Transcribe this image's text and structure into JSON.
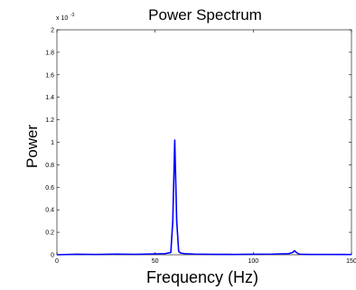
{
  "chart_data": {
    "type": "line",
    "title": "Power Spectrum",
    "xlabel": "Frequency (Hz)",
    "ylabel": "Power",
    "y_multiplier_label": "x 10",
    "y_multiplier_exponent": "-3",
    "xlim": [
      0,
      150
    ],
    "ylim": [
      0,
      0.002
    ],
    "x_ticks": [
      0,
      50,
      100,
      150
    ],
    "x_tick_labels": [
      "0",
      "50",
      "100",
      "150"
    ],
    "y_ticks": [
      0,
      0.0002,
      0.0004,
      0.0006,
      0.0008,
      0.001,
      0.0012,
      0.0014,
      0.0016,
      0.0018,
      0.002
    ],
    "y_tick_labels": [
      "0",
      "0.2",
      "0.4",
      "0.6",
      "0.8",
      "1",
      "1.2",
      "1.4",
      "1.6",
      "1.8",
      "2"
    ],
    "grid": false,
    "series": [
      {
        "color": "#0000ff",
        "x": [
          0,
          10,
          20,
          30,
          40,
          50,
          55,
          58,
          59,
          60,
          61,
          62,
          63,
          65,
          70,
          80,
          90,
          100,
          110,
          118,
          120,
          121,
          122,
          123,
          124,
          126,
          130,
          140,
          150
        ],
        "y": [
          0,
          5e-06,
          3e-06,
          6e-06,
          4e-06,
          8e-06,
          1e-05,
          2e-05,
          0.0003,
          0.00102,
          0.0003,
          3e-05,
          1.5e-05,
          1e-05,
          6e-06,
          4e-06,
          3e-06,
          5e-06,
          6e-06,
          1e-05,
          2e-05,
          3.5e-05,
          2e-05,
          8e-06,
          5e-06,
          4e-06,
          3e-06,
          3e-06,
          2e-06
        ]
      }
    ]
  }
}
